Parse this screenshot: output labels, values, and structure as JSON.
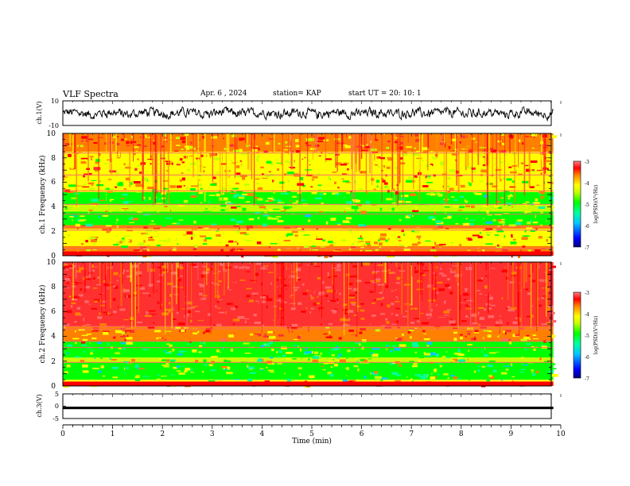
{
  "header": {
    "title": "VLF Spectra",
    "date": "Apr. 6 , 2024",
    "station": "station= KAP",
    "start": "start UT = 20: 10: 1"
  },
  "chart_data": [
    {
      "type": "line",
      "panel": "ch1-waveform",
      "ylabel": "ch.1(V)",
      "ylim": [
        -10,
        10
      ],
      "yticks": [
        "10",
        "-10"
      ],
      "xlim": [
        0,
        10
      ],
      "series_color": "#000000",
      "approx_range": [
        -6,
        5
      ]
    },
    {
      "type": "heatmap",
      "panel": "ch1-spectrogram",
      "ylabel": "ch.1 Frequency (kHz)",
      "ylim": [
        0,
        10
      ],
      "yticks": [
        "0",
        "2",
        "4",
        "6",
        "8",
        "10"
      ],
      "xlim": [
        0,
        10
      ],
      "data_end_min": 9.85,
      "bands": [
        {
          "from": 0,
          "to": 0.8,
          "level": -4.4
        },
        {
          "from": 0.8,
          "to": 2.2,
          "level": -4.8
        },
        {
          "from": 2.2,
          "to": 2.5,
          "level": -4.2
        },
        {
          "from": 2.5,
          "to": 3.6,
          "level": -5.3
        },
        {
          "from": 3.6,
          "to": 4.2,
          "level": -4.9
        },
        {
          "from": 4.2,
          "to": 5.2,
          "level": -5.2
        },
        {
          "from": 5.2,
          "to": 6.6,
          "level": -4.8
        },
        {
          "from": 6.6,
          "to": 8.5,
          "level": -4.5
        },
        {
          "from": 8.5,
          "to": 10,
          "level": -4.3
        }
      ],
      "lines_khz": [
        0.3,
        0.6,
        2.1,
        2.35,
        3.4,
        4.2,
        5.3,
        6.6,
        8.4
      ]
    },
    {
      "type": "heatmap",
      "panel": "ch2-spectrogram",
      "ylabel": "ch.2 Frequency (kHz)",
      "ylim": [
        0,
        10
      ],
      "yticks": [
        "0",
        "2",
        "4",
        "6",
        "8",
        "10"
      ],
      "xlim": [
        0,
        10
      ],
      "data_end_min": 9.85,
      "bands": [
        {
          "from": 0,
          "to": 0.5,
          "level": -4.6
        },
        {
          "from": 0.5,
          "to": 1.9,
          "level": -5.3
        },
        {
          "from": 1.9,
          "to": 2.3,
          "level": -5.0
        },
        {
          "from": 2.3,
          "to": 3.6,
          "level": -5.4
        },
        {
          "from": 3.6,
          "to": 4.8,
          "level": -4.2
        },
        {
          "from": 4.8,
          "to": 10,
          "level": -3.6
        }
      ],
      "lines_khz": [
        1.9,
        3.1,
        3.6,
        4.6,
        4.8
      ]
    },
    {
      "type": "line",
      "panel": "ch3-waveform",
      "ylabel": "ch.3(V)",
      "ylim": [
        -5,
        5
      ],
      "yticks": [
        "5",
        "0",
        "-5"
      ],
      "xlim": [
        0,
        10
      ],
      "xlabel": "Time (min)",
      "xticks": [
        "0",
        "1",
        "2",
        "3",
        "4",
        "5",
        "6",
        "7",
        "8",
        "9",
        "10"
      ],
      "level_band": [
        -1.2,
        -0.2
      ]
    }
  ],
  "colorbar": {
    "label": "log(PSD)(V²/Hz)",
    "range": [
      -7,
      -3
    ],
    "ticks": [
      "-3",
      "-4",
      "-5",
      "-6",
      "-7"
    ]
  },
  "palette": [
    "#00007a",
    "#0000ff",
    "#00c8ff",
    "#00ffa0",
    "#00ff00",
    "#c8ff00",
    "#ffff00",
    "#ff8000",
    "#ff0000",
    "#ff3030",
    "#ff6868"
  ]
}
